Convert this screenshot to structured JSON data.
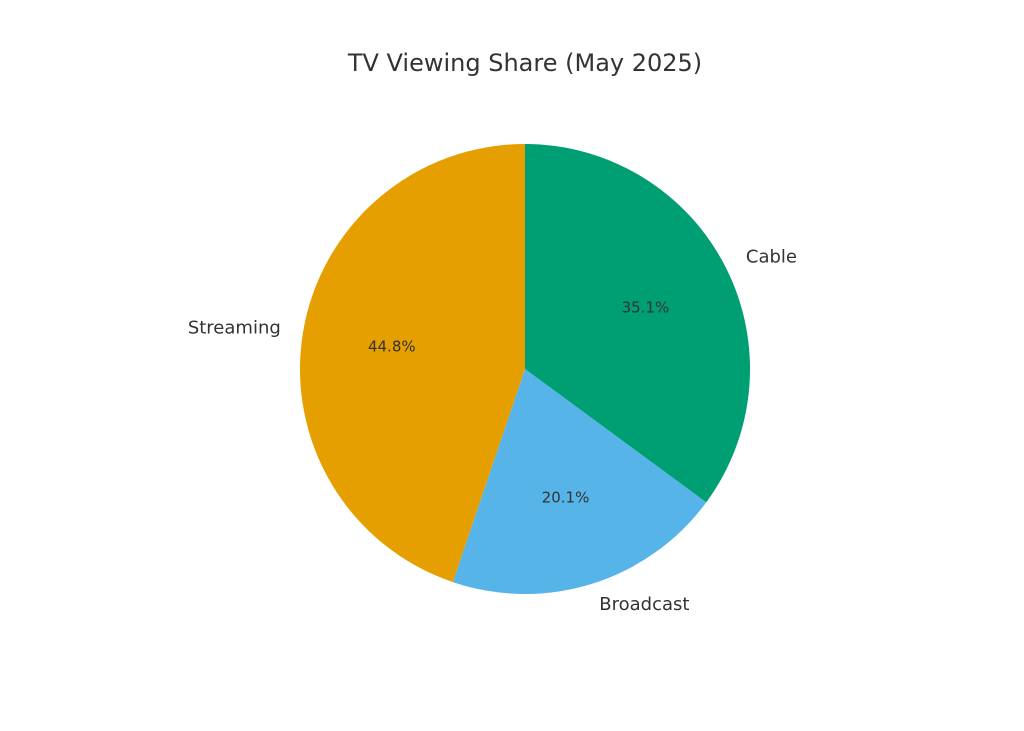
{
  "chart_data": {
    "type": "pie",
    "title": "TV Viewing Share (May 2025)",
    "categories": [
      "Cable",
      "Broadcast",
      "Streaming"
    ],
    "values": [
      35.1,
      20.1,
      44.8
    ],
    "value_labels": [
      "35.1%",
      "20.1%",
      "44.8%"
    ],
    "colors": [
      "#009E73",
      "#56B4E9",
      "#E69F00"
    ]
  }
}
